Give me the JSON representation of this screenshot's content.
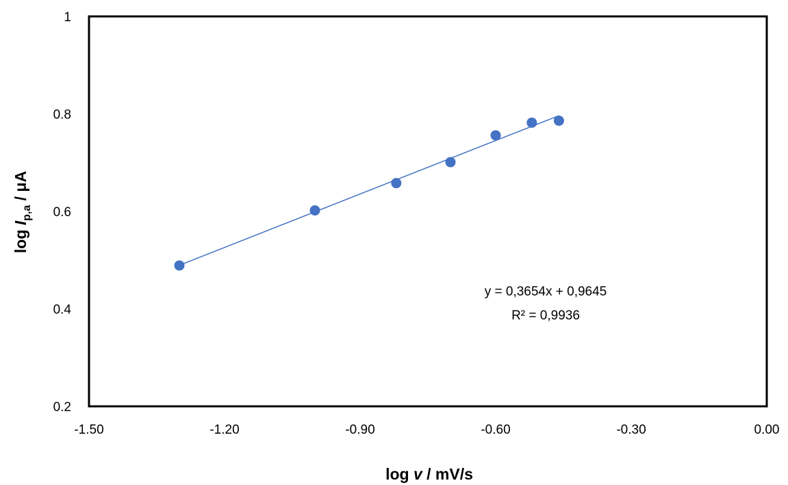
{
  "chart_data": {
    "type": "scatter",
    "x": [
      -1.3,
      -1.0,
      -0.82,
      -0.7,
      -0.6,
      -0.52,
      -0.46
    ],
    "y": [
      0.489,
      0.602,
      0.658,
      0.701,
      0.756,
      0.782,
      0.786
    ],
    "xlim": [
      -1.5,
      0.0
    ],
    "ylim": [
      0.2,
      1.0
    ],
    "xticks": [
      -1.5,
      -1.2,
      -0.9,
      -0.6,
      -0.3,
      0.0
    ],
    "xtick_labels": [
      "-1.50",
      "-1.20",
      "-0.90",
      "-0.60",
      "-0.30",
      "0.00"
    ],
    "yticks": [
      0.2,
      0.4,
      0.6,
      0.8,
      1.0
    ],
    "ytick_labels": [
      "0.2",
      "0.4",
      "0.6",
      "0.8",
      "1"
    ],
    "xlabel": {
      "prefix": "log ",
      "var": "v",
      "suffix": " / mV/s"
    },
    "ylabel": {
      "prefix": "log ",
      "var": "I",
      "sub": "p,a",
      "suffix": " / μA"
    },
    "trendline": {
      "slope": 0.3654,
      "intercept": 0.9645,
      "x_range": [
        -1.3,
        -0.46
      ],
      "equation": "y = 0,3654x + 0,9645",
      "r2": "R² = 0,9936"
    },
    "grid": false,
    "legend": "none",
    "colors": {
      "marker": "#4472C4",
      "line": "#4472C4",
      "axes": "#000000"
    }
  }
}
